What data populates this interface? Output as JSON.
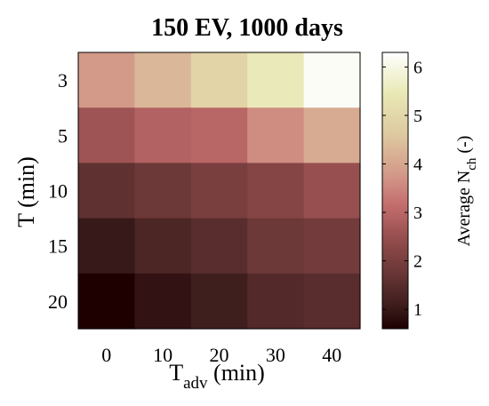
{
  "chart_data": {
    "type": "heatmap",
    "title": "150 EV, 1000 days",
    "xlabel_main": "T",
    "xlabel_sub": "adv",
    "xlabel_unit": " (min)",
    "ylabel": "T (min)",
    "x_categories": [
      "0",
      "10",
      "20",
      "30",
      "40"
    ],
    "y_categories": [
      "3",
      "5",
      "10",
      "15",
      "20"
    ],
    "values": [
      [
        3.8,
        4.3,
        4.9,
        5.5,
        6.2
      ],
      [
        2.6,
        2.9,
        3.0,
        3.6,
        4.1
      ],
      [
        1.6,
        1.8,
        2.0,
        2.2,
        2.5
      ],
      [
        1.0,
        1.3,
        1.5,
        1.8,
        1.9
      ],
      [
        0.6,
        0.9,
        1.1,
        1.4,
        1.5
      ]
    ],
    "colorbar": {
      "label_main": "Average N",
      "label_sub": "ch",
      "label_unit": " (-)",
      "range": [
        0.6,
        6.3
      ],
      "ticks": [
        "1",
        "2",
        "3",
        "4",
        "5",
        "6"
      ],
      "colormap": "pink"
    },
    "grid": false
  }
}
